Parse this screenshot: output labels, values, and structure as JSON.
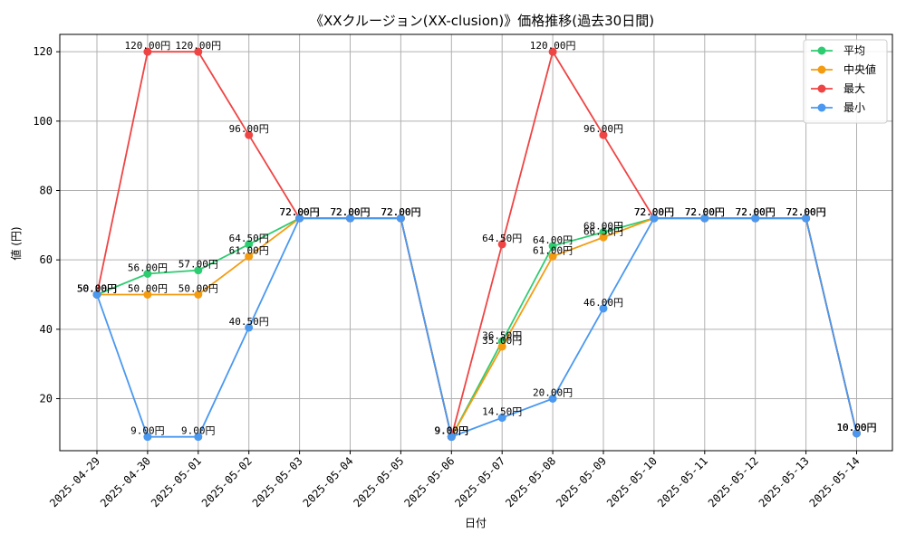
{
  "chart_data": {
    "type": "line",
    "title": "《XXクルージョン(XX-clusion)》価格推移(過去30日間)",
    "xlabel": "日付",
    "ylabel": "値 (円)",
    "ylim": [
      5,
      125
    ],
    "yticks": [
      20,
      40,
      60,
      80,
      100,
      120
    ],
    "grid": true,
    "legend_position": "top-right",
    "label_suffix": "円",
    "categories": [
      "2025-04-29",
      "2025-04-30",
      "2025-05-01",
      "2025-05-02",
      "2025-05-03",
      "2025-05-04",
      "2025-05-05",
      "2025-05-06",
      "2025-05-07",
      "2025-05-08",
      "2025-05-09",
      "2025-05-10",
      "2025-05-11",
      "2025-05-12",
      "2025-05-13",
      "2025-05-14"
    ],
    "series": [
      {
        "name": "平均",
        "color": "#2ecc71",
        "values": [
          50,
          56,
          57,
          64.5,
          72,
          72,
          72,
          9,
          36.5,
          64,
          68,
          72,
          72,
          72,
          72,
          10
        ]
      },
      {
        "name": "中央値",
        "color": "#f39c12",
        "values": [
          50,
          50,
          50,
          61,
          72,
          72,
          72,
          9,
          35,
          61,
          66.5,
          72,
          72,
          72,
          72,
          10
        ]
      },
      {
        "name": "最大",
        "color": "#ef4444",
        "values": [
          50,
          120,
          120,
          96,
          72,
          72,
          72,
          9,
          64.5,
          120,
          96,
          72,
          72,
          72,
          72,
          10
        ]
      },
      {
        "name": "最小",
        "color": "#4a98f0",
        "values": [
          50,
          9,
          9,
          40.5,
          72,
          72,
          72,
          9,
          14.5,
          20,
          46,
          72,
          72,
          72,
          72,
          10
        ]
      }
    ]
  }
}
